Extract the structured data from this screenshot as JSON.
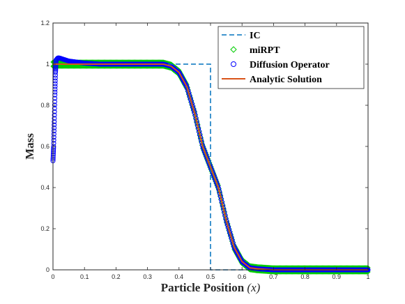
{
  "chart_data": {
    "type": "line",
    "title": "",
    "xlabel": "Particle Position",
    "xlabel_math": "(x)",
    "ylabel": "Mass",
    "xlim": [
      0,
      1
    ],
    "ylim": [
      0,
      1.2
    ],
    "xticks": [
      "0",
      "0.1",
      "0.2",
      "0.3",
      "0.4",
      "0.5",
      "0.6",
      "0.7",
      "0.8",
      "0.9",
      "1"
    ],
    "yticks": [
      "0",
      "0.2",
      "0.4",
      "0.6",
      "0.8",
      "1",
      "1.2"
    ],
    "grid": false,
    "legend_position": "top-right",
    "series": [
      {
        "name": "IC",
        "style": "dashed-line",
        "color": "#0072BD",
        "x": [
          0,
          0.5,
          0.5,
          1
        ],
        "y": [
          1,
          1,
          0,
          0
        ]
      },
      {
        "name": "miRPT",
        "style": "diamond-markers",
        "color": "#00CC00",
        "x": [
          0,
          0.05,
          0.1,
          0.15,
          0.2,
          0.25,
          0.3,
          0.35,
          0.375,
          0.4,
          0.425,
          0.45,
          0.475,
          0.5,
          0.525,
          0.55,
          0.575,
          0.6,
          0.625,
          0.65,
          0.7,
          0.75,
          0.8,
          0.85,
          0.9,
          0.95,
          1
        ],
        "y": [
          1,
          1,
          1,
          1,
          1,
          1,
          1,
          1,
          0.99,
          0.96,
          0.89,
          0.76,
          0.6,
          0.5,
          0.4,
          0.24,
          0.11,
          0.04,
          0.01,
          0.005,
          0,
          0,
          0,
          0,
          0,
          0,
          0
        ],
        "band": 0.02
      },
      {
        "name": "Diffusion Operator",
        "style": "circle-markers",
        "color": "#0000FF",
        "x": [
          0,
          0.002,
          0.004,
          0.006,
          0.008,
          0.01,
          0.015,
          0.02,
          0.03,
          0.05,
          0.1,
          0.15,
          0.2,
          0.25,
          0.3,
          0.35,
          0.375,
          0.4,
          0.425,
          0.45,
          0.475,
          0.5,
          0.525,
          0.55,
          0.575,
          0.6,
          0.625,
          0.65,
          0.7,
          0.75,
          0.8,
          0.85,
          0.9,
          0.95,
          1
        ],
        "y": [
          0.53,
          0.6,
          0.72,
          0.85,
          0.96,
          1.02,
          1.03,
          1.03,
          1.025,
          1.015,
          1.005,
          1,
          1,
          1,
          1,
          1,
          0.99,
          0.96,
          0.89,
          0.76,
          0.6,
          0.5,
          0.4,
          0.24,
          0.11,
          0.04,
          0.01,
          0.005,
          0,
          0,
          0,
          0,
          0,
          0,
          0
        ]
      },
      {
        "name": "Analytic Solution",
        "style": "solid-line",
        "color": "#D95319",
        "x": [
          0,
          0.1,
          0.2,
          0.3,
          0.35,
          0.375,
          0.4,
          0.425,
          0.45,
          0.475,
          0.5,
          0.525,
          0.55,
          0.575,
          0.6,
          0.625,
          0.65,
          0.7,
          0.8,
          0.9,
          1
        ],
        "y": [
          1,
          1,
          1,
          1,
          1,
          0.99,
          0.96,
          0.89,
          0.76,
          0.6,
          0.5,
          0.4,
          0.24,
          0.11,
          0.04,
          0.01,
          0.005,
          0,
          0,
          0,
          0
        ]
      }
    ]
  }
}
